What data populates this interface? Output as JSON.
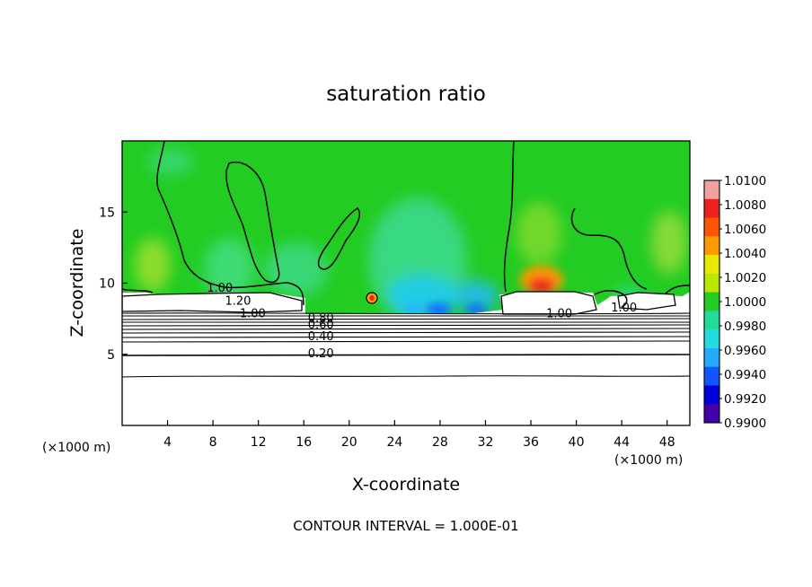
{
  "chart_data": {
    "type": "heatmap",
    "title": "saturation ratio",
    "xlabel": "X-coordinate",
    "ylabel": "Z-coordinate",
    "x_unit_left": "(×1000 m)",
    "x_unit_right": "(×1000 m)",
    "footer": "CONTOUR INTERVAL = 1.000E-01",
    "xlim": [
      0,
      50
    ],
    "ylim": [
      0,
      20
    ],
    "x_ticks": [
      4,
      8,
      12,
      16,
      20,
      24,
      28,
      32,
      36,
      40,
      44,
      48
    ],
    "y_ticks": [
      5,
      10,
      15
    ],
    "colorbar": {
      "min": 0.99,
      "max": 1.01,
      "labels": [
        "1.0100",
        "1.0080",
        "1.0060",
        "1.0040",
        "1.0020",
        "1.0000",
        "0.9980",
        "0.9960",
        "0.9940",
        "0.9920",
        "0.9900"
      ],
      "colors": [
        "#f2a0a0",
        "#ee2020",
        "#ff5500",
        "#ff9900",
        "#e8e800",
        "#b8e800",
        "#22cc22",
        "#22dd99",
        "#22dddd",
        "#22aaff",
        "#1155ff",
        "#0000dd",
        "#4400aa"
      ]
    },
    "contour_labels": [
      {
        "text": "1.00",
        "x": 8.6,
        "y": 9.4
      },
      {
        "text": "1.20",
        "x": 10.2,
        "y": 8.5
      },
      {
        "text": "1.00",
        "x": 11.5,
        "y": 7.6
      },
      {
        "text": "0.80",
        "x": 17.5,
        "y": 7.3
      },
      {
        "text": "0.60",
        "x": 17.5,
        "y": 6.8
      },
      {
        "text": "0.40",
        "x": 17.5,
        "y": 6.0
      },
      {
        "text": "0.20",
        "x": 17.5,
        "y": 4.8
      },
      {
        "text": "1.00",
        "x": 38.5,
        "y": 7.6
      },
      {
        "text": "1.00",
        "x": 44.2,
        "y": 8.0
      }
    ],
    "colors": {
      "background": "#22cc22",
      "cloud": "#ffffff",
      "frame": "#000000"
    }
  }
}
